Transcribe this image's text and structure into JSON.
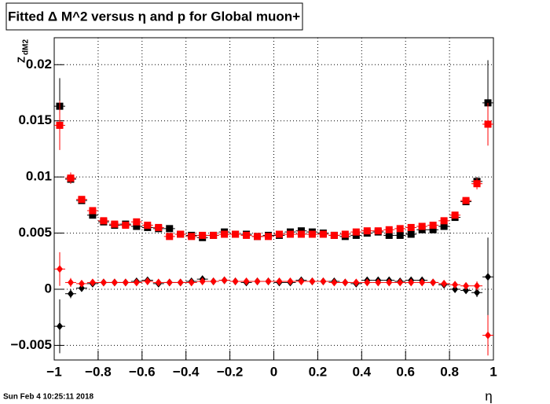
{
  "chart_data": {
    "type": "scatter",
    "title": "Fitted Δ M^2 versus η and p for Global muon+",
    "x_label": "η",
    "y_label": {
      "main": "Z",
      "sub": "dM2"
    },
    "timestamp": "Sun Feb  4 10:25:11 2018",
    "grid": true,
    "xlim": [
      -1,
      1
    ],
    "ylim": [
      -0.0063,
      0.0224
    ],
    "xticks": [
      {
        "value": -1,
        "label": "−1"
      },
      {
        "value": -0.8,
        "label": "−0.8"
      },
      {
        "value": -0.6,
        "label": "−0.6"
      },
      {
        "value": -0.4,
        "label": "−0.4"
      },
      {
        "value": -0.2,
        "label": "−0.2"
      },
      0,
      0.2,
      0.4,
      0.6,
      0.8,
      1
    ],
    "yticks": [
      {
        "value": -0.005,
        "label": "−0.005"
      },
      0,
      0.005,
      0.01,
      0.015,
      0.02
    ],
    "x": [
      -0.975,
      -0.925,
      -0.875,
      -0.825,
      -0.775,
      -0.725,
      -0.675,
      -0.625,
      -0.575,
      -0.525,
      -0.475,
      -0.425,
      -0.375,
      -0.325,
      -0.275,
      -0.225,
      -0.175,
      -0.125,
      -0.075,
      -0.025,
      0.025,
      0.075,
      0.125,
      0.175,
      0.225,
      0.275,
      0.325,
      0.375,
      0.425,
      0.475,
      0.525,
      0.575,
      0.625,
      0.675,
      0.725,
      0.775,
      0.825,
      0.875,
      0.925,
      0.975
    ],
    "series": [
      {
        "color": "#000000",
        "marker": "square",
        "values": [
          0.0163,
          0.0098,
          0.0079,
          0.0066,
          0.006,
          0.0057,
          0.0058,
          0.0056,
          0.0055,
          0.0054,
          0.0054,
          0.0049,
          0.0048,
          0.0046,
          0.0048,
          0.0051,
          0.0049,
          0.0049,
          0.0047,
          0.0048,
          0.0048,
          0.0051,
          0.0052,
          0.0051,
          0.005,
          0.0048,
          0.0047,
          0.0048,
          0.005,
          0.0051,
          0.0048,
          0.0048,
          0.0049,
          0.0053,
          0.0053,
          0.0056,
          0.0064,
          0.0078,
          0.0096,
          0.0166
        ],
        "errors": [
          0.0025,
          0.0004,
          0.0003,
          0.0002,
          0.0002,
          0.0002,
          0.0002,
          0.0002,
          0.0002,
          0.0002,
          0.0002,
          0.0002,
          0.0002,
          0.0002,
          0.0002,
          0.0002,
          0.0002,
          0.0002,
          0.0002,
          0.0002,
          0.0002,
          0.0002,
          0.0002,
          0.0002,
          0.0002,
          0.0002,
          0.0002,
          0.0002,
          0.0002,
          0.0002,
          0.0002,
          0.0002,
          0.0002,
          0.0002,
          0.0002,
          0.0002,
          0.0002,
          0.0003,
          0.0004,
          0.0038
        ]
      },
      {
        "color": "#ff0000",
        "marker": "square",
        "values": [
          0.0146,
          0.0099,
          0.008,
          0.007,
          0.0061,
          0.0058,
          0.0057,
          0.006,
          0.0057,
          0.0055,
          0.0047,
          0.0049,
          0.0047,
          0.0048,
          0.0048,
          0.0049,
          0.0049,
          0.0048,
          0.0047,
          0.0047,
          0.0049,
          0.0049,
          0.0049,
          0.0049,
          0.0049,
          0.0048,
          0.0049,
          0.0051,
          0.0052,
          0.0052,
          0.0053,
          0.0054,
          0.0055,
          0.0056,
          0.0057,
          0.0061,
          0.0066,
          0.0079,
          0.0094,
          0.0147
        ],
        "errors": [
          0.0022,
          0.0005,
          0.0003,
          0.0002,
          0.0002,
          0.0002,
          0.0002,
          0.0002,
          0.0002,
          0.0002,
          0.0002,
          0.0002,
          0.0002,
          0.0002,
          0.0002,
          0.0002,
          0.0002,
          0.0002,
          0.0002,
          0.0002,
          0.0002,
          0.0002,
          0.0002,
          0.0002,
          0.0002,
          0.0002,
          0.0002,
          0.0002,
          0.0002,
          0.0002,
          0.0002,
          0.0002,
          0.0002,
          0.0002,
          0.0002,
          0.0002,
          0.0002,
          0.0003,
          0.0005,
          0.0019
        ]
      },
      {
        "color": "#000000",
        "marker": "diamond",
        "values": [
          -0.0033,
          -0.0004,
          0.0001,
          0.0005,
          0.0006,
          0.0006,
          0.0006,
          0.0007,
          0.0008,
          0.0005,
          0.0006,
          0.0006,
          0.0007,
          0.0009,
          0.0007,
          0.0008,
          0.0007,
          0.0006,
          0.0007,
          0.0007,
          0.0006,
          0.0006,
          0.0008,
          0.0007,
          0.0007,
          0.0007,
          0.0006,
          0.0005,
          0.0008,
          0.0008,
          0.0008,
          0.0007,
          0.0008,
          0.0008,
          0.0006,
          0.0004,
          0.0,
          -0.0001,
          -0.0003,
          0.0011
        ],
        "errors": [
          0.0024,
          0.0004,
          0.0003,
          0.0002,
          0.0002,
          0.0002,
          0.0002,
          0.0002,
          0.0002,
          0.0002,
          0.0002,
          0.0002,
          0.0002,
          0.0002,
          0.0002,
          0.0002,
          0.0002,
          0.0002,
          0.0002,
          0.0002,
          0.0002,
          0.0002,
          0.0002,
          0.0002,
          0.0002,
          0.0002,
          0.0002,
          0.0002,
          0.0002,
          0.0002,
          0.0002,
          0.0002,
          0.0002,
          0.0002,
          0.0002,
          0.0002,
          0.0002,
          0.0003,
          0.0004,
          0.0035
        ]
      },
      {
        "color": "#ff0000",
        "marker": "diamond",
        "values": [
          0.0018,
          0.0006,
          0.0005,
          0.0006,
          0.0006,
          0.0006,
          0.0006,
          0.0006,
          0.0007,
          0.0006,
          0.0006,
          0.0006,
          0.0006,
          0.0007,
          0.0007,
          0.0008,
          0.0007,
          0.0007,
          0.0007,
          0.0007,
          0.0007,
          0.0007,
          0.0007,
          0.0007,
          0.0007,
          0.0006,
          0.0006,
          0.0006,
          0.0006,
          0.0006,
          0.0006,
          0.0006,
          0.0006,
          0.0006,
          0.0006,
          0.0005,
          0.0004,
          0.0003,
          0.0003,
          -0.0041
        ],
        "errors": [
          0.0015,
          0.0004,
          0.0003,
          0.0002,
          0.0002,
          0.0002,
          0.0002,
          0.0002,
          0.0002,
          0.0002,
          0.0002,
          0.0002,
          0.0002,
          0.0002,
          0.0002,
          0.0002,
          0.0002,
          0.0002,
          0.0002,
          0.0002,
          0.0002,
          0.0002,
          0.0002,
          0.0002,
          0.0002,
          0.0002,
          0.0002,
          0.0002,
          0.0002,
          0.0002,
          0.0002,
          0.0002,
          0.0002,
          0.0002,
          0.0002,
          0.0002,
          0.0002,
          0.0003,
          0.0004,
          0.0018
        ]
      }
    ]
  }
}
